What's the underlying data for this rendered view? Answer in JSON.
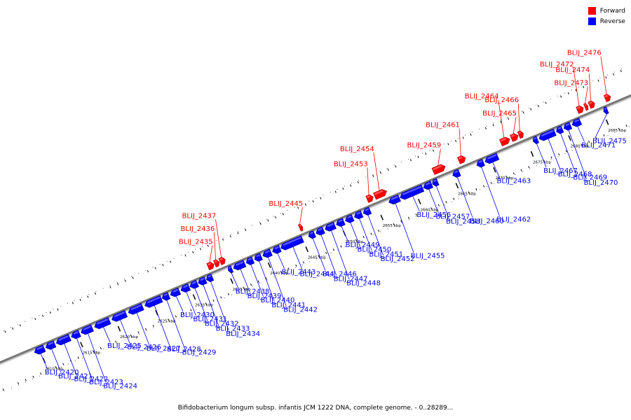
{
  "legend": {
    "forward_label": "Forward",
    "reverse_label": "Reverse",
    "forward_color": "#ff0000",
    "reverse_color": "#0000ff"
  },
  "caption": "Bifidobacterium longum subsp. infantis JCM 1222 DNA, complete genome. - 0..28289...",
  "map": {
    "kbp_ticks": [
      {
        "kbp": 2610,
        "label": "2610 kbp"
      },
      {
        "kbp": 2615,
        "label": "2615 kbp"
      },
      {
        "kbp": 2620,
        "label": "2620 kbp"
      },
      {
        "kbp": 2625,
        "label": "2625 kbp"
      },
      {
        "kbp": 2630,
        "label": "2630 kbp"
      },
      {
        "kbp": 2635,
        "label": "2635 kbp"
      },
      {
        "kbp": 2640,
        "label": "2640 kbp"
      },
      {
        "kbp": 2645,
        "label": "2645 kbp"
      },
      {
        "kbp": 2650,
        "label": "2650 kbp"
      },
      {
        "kbp": 2655,
        "label": "2655 kbp"
      },
      {
        "kbp": 2660,
        "label": "2660 kbp"
      },
      {
        "kbp": 2665,
        "label": "2665 kbp"
      },
      {
        "kbp": 2670,
        "label": "2670 kbp"
      },
      {
        "kbp": 2675,
        "label": "2675 kbp"
      },
      {
        "kbp": 2680,
        "label": "2680 kbp"
      },
      {
        "kbp": 2685,
        "label": "2685 kbp"
      }
    ],
    "genes": [
      {
        "name": "BLIJ_2420",
        "strand": "reverse",
        "start_kbp": 2609.3,
        "end_kbp": 2610.6
      },
      {
        "name": "BLIJ_2421",
        "strand": "reverse",
        "start_kbp": 2610.8,
        "end_kbp": 2612.0
      },
      {
        "name": "BLIJ_2422",
        "strand": "reverse",
        "start_kbp": 2612.2,
        "end_kbp": 2614.0
      },
      {
        "name": "BLIJ_2423",
        "strand": "reverse",
        "start_kbp": 2614.2,
        "end_kbp": 2615.3
      },
      {
        "name": "BLIJ_2424",
        "strand": "reverse",
        "start_kbp": 2615.5,
        "end_kbp": 2617.0
      },
      {
        "name": "BLIJ_2425",
        "strand": "reverse",
        "start_kbp": 2617.3,
        "end_kbp": 2619.3
      },
      {
        "name": "BLIJ_2426",
        "strand": "reverse",
        "start_kbp": 2619.6,
        "end_kbp": 2621.5
      },
      {
        "name": "BLIJ_2427",
        "strand": "reverse",
        "start_kbp": 2621.8,
        "end_kbp": 2623.7
      },
      {
        "name": "BLIJ_2428",
        "strand": "reverse",
        "start_kbp": 2624.0,
        "end_kbp": 2626.2
      },
      {
        "name": "BLIJ_2429",
        "strand": "reverse",
        "start_kbp": 2626.3,
        "end_kbp": 2627.2
      },
      {
        "name": "BLIJ_2430",
        "strand": "reverse",
        "start_kbp": 2627.4,
        "end_kbp": 2628.6
      },
      {
        "name": "BLIJ_2431",
        "strand": "reverse",
        "start_kbp": 2628.8,
        "end_kbp": 2629.9
      },
      {
        "name": "BLIJ_2432",
        "strand": "reverse",
        "start_kbp": 2630.0,
        "end_kbp": 2631.0
      },
      {
        "name": "BLIJ_2433",
        "strand": "reverse",
        "start_kbp": 2631.1,
        "end_kbp": 2632.1
      },
      {
        "name": "BLIJ_2434",
        "strand": "reverse",
        "start_kbp": 2632.2,
        "end_kbp": 2633.0
      },
      {
        "name": "BLIJ_2435",
        "strand": "forward",
        "start_kbp": 2633.0,
        "end_kbp": 2633.8
      },
      {
        "name": "BLIJ_2436",
        "strand": "forward",
        "start_kbp": 2633.9,
        "end_kbp": 2634.5
      },
      {
        "name": "BLIJ_2437",
        "strand": "forward",
        "start_kbp": 2634.6,
        "end_kbp": 2635.3
      },
      {
        "name": "BLIJ_2438",
        "strand": "reverse",
        "start_kbp": 2635.1,
        "end_kbp": 2635.6
      },
      {
        "name": "BLIJ_2439",
        "strand": "reverse",
        "start_kbp": 2635.8,
        "end_kbp": 2637.3
      },
      {
        "name": "BLIJ_2440",
        "strand": "reverse",
        "start_kbp": 2637.5,
        "end_kbp": 2638.4
      },
      {
        "name": "BLIJ_2441",
        "strand": "reverse",
        "start_kbp": 2638.6,
        "end_kbp": 2639.5
      },
      {
        "name": "BLIJ_2442",
        "strand": "reverse",
        "start_kbp": 2639.7,
        "end_kbp": 2640.8
      },
      {
        "name": "BLIJ_2443",
        "strand": "reverse",
        "start_kbp": 2641.0,
        "end_kbp": 2642.0
      },
      {
        "name": "BLIJ_2444",
        "strand": "reverse",
        "start_kbp": 2642.1,
        "end_kbp": 2645.0
      },
      {
        "name": "BLIJ_2445",
        "strand": "forward",
        "start_kbp": 2645.2,
        "end_kbp": 2645.6
      },
      {
        "name": "BLIJ_2446",
        "strand": "reverse",
        "start_kbp": 2645.8,
        "end_kbp": 2646.6
      },
      {
        "name": "BLIJ_2447",
        "strand": "reverse",
        "start_kbp": 2646.8,
        "end_kbp": 2647.8
      },
      {
        "name": "BLIJ_2448",
        "strand": "reverse",
        "start_kbp": 2648.0,
        "end_kbp": 2649.3
      },
      {
        "name": "BLIJ_2449",
        "strand": "reverse",
        "start_kbp": 2649.5,
        "end_kbp": 2650.5
      },
      {
        "name": "BLIJ_2450",
        "strand": "reverse",
        "start_kbp": 2650.7,
        "end_kbp": 2651.7
      },
      {
        "name": "BLIJ_2451",
        "strand": "reverse",
        "start_kbp": 2651.9,
        "end_kbp": 2652.9
      },
      {
        "name": "BLIJ_2452",
        "strand": "reverse",
        "start_kbp": 2653.1,
        "end_kbp": 2654.0
      },
      {
        "name": "BLIJ_2453",
        "strand": "forward",
        "start_kbp": 2654.2,
        "end_kbp": 2655.0
      },
      {
        "name": "BLIJ_2454",
        "strand": "forward",
        "start_kbp": 2655.2,
        "end_kbp": 2656.8
      },
      {
        "name": "BLIJ_2455",
        "strand": "reverse",
        "start_kbp": 2656.5,
        "end_kbp": 2657.9
      },
      {
        "name": "BLIJ_2456",
        "strand": "reverse",
        "start_kbp": 2658.0,
        "end_kbp": 2661.0
      },
      {
        "name": "BLIJ_2457",
        "strand": "reverse",
        "start_kbp": 2661.1,
        "end_kbp": 2662.2
      },
      {
        "name": "BLIJ_2458",
        "strand": "reverse",
        "start_kbp": 2662.3,
        "end_kbp": 2663.0
      },
      {
        "name": "BLIJ_2459",
        "strand": "forward",
        "start_kbp": 2663.0,
        "end_kbp": 2664.6
      },
      {
        "name": "BLIJ_2460",
        "strand": "reverse",
        "start_kbp": 2665.0,
        "end_kbp": 2665.9
      },
      {
        "name": "BLIJ_2461",
        "strand": "forward",
        "start_kbp": 2666.4,
        "end_kbp": 2667.3
      },
      {
        "name": "BLIJ_2462",
        "strand": "reverse",
        "start_kbp": 2668.2,
        "end_kbp": 2669.1
      },
      {
        "name": "BLIJ_2463",
        "strand": "reverse",
        "start_kbp": 2669.3,
        "end_kbp": 2671.0
      },
      {
        "name": "BLIJ_2464",
        "strand": "forward",
        "start_kbp": 2672.0,
        "end_kbp": 2673.2
      },
      {
        "name": "BLIJ_2465",
        "strand": "forward",
        "start_kbp": 2673.4,
        "end_kbp": 2674.3
      },
      {
        "name": "BLIJ_2466",
        "strand": "forward",
        "start_kbp": 2674.4,
        "end_kbp": 2675.0
      },
      {
        "name": "BLIJ_2467",
        "strand": "reverse",
        "start_kbp": 2675.7,
        "end_kbp": 2676.3
      },
      {
        "name": "BLIJ_2468",
        "strand": "reverse",
        "start_kbp": 2676.5,
        "end_kbp": 2678.6
      },
      {
        "name": "BLIJ_2469",
        "strand": "reverse",
        "start_kbp": 2678.8,
        "end_kbp": 2679.6
      },
      {
        "name": "BLIJ_2470",
        "strand": "reverse",
        "start_kbp": 2679.8,
        "end_kbp": 2680.7
      },
      {
        "name": "BLIJ_2471",
        "strand": "reverse",
        "start_kbp": 2680.9,
        "end_kbp": 2682.0
      },
      {
        "name": "BLIJ_2472",
        "strand": "forward",
        "start_kbp": 2682.2,
        "end_kbp": 2683.0
      },
      {
        "name": "BLIJ_2473",
        "strand": "forward",
        "start_kbp": 2683.2,
        "end_kbp": 2683.6
      },
      {
        "name": "BLIJ_2474",
        "strand": "forward",
        "start_kbp": 2683.8,
        "end_kbp": 2684.5
      },
      {
        "name": "BLIJ_2475",
        "strand": "reverse",
        "start_kbp": 2685.1,
        "end_kbp": 2685.6
      },
      {
        "name": "BLIJ_2476",
        "strand": "forward",
        "start_kbp": 2685.9,
        "end_kbp": 2686.6
      }
    ]
  }
}
